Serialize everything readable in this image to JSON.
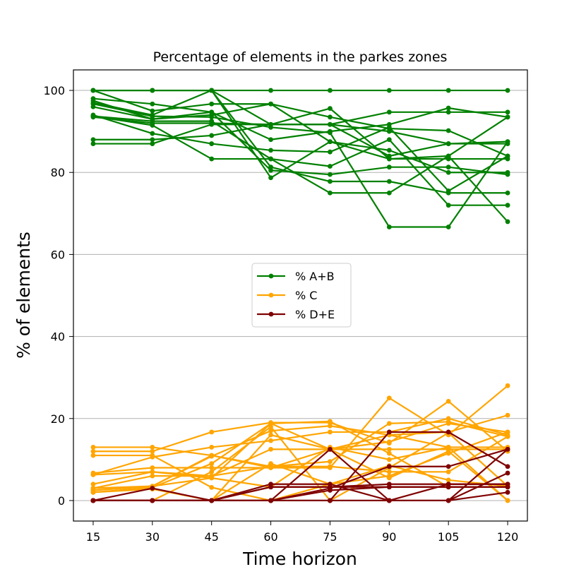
{
  "chart_data": {
    "type": "line",
    "title": "Percentage of elements in the parkes zones",
    "xlabel": "Time horizon",
    "ylabel": "% of elements",
    "x": [
      15,
      30,
      45,
      60,
      75,
      90,
      105,
      120
    ],
    "x_tick_labels": [
      "15",
      "30",
      "45",
      "60",
      "75",
      "90",
      "105",
      "120"
    ],
    "y_ticks": [
      0,
      20,
      40,
      60,
      80,
      100
    ],
    "y_tick_labels": [
      "0",
      "20",
      "40",
      "60",
      "80",
      "100"
    ],
    "xlim": [
      10,
      125
    ],
    "ylim": [
      -5,
      105
    ],
    "grid": "y-axis horizontal lines",
    "legend_position": "center",
    "legend": [
      {
        "label": "% A+B",
        "color": "#008000"
      },
      {
        "label": "% C",
        "color": "#FFA500"
      },
      {
        "label": "% D+E",
        "color": "#800000"
      }
    ],
    "groups": [
      {
        "name": "% A+B",
        "color": "#008000",
        "series": [
          [
            100,
            100,
            100,
            100,
            100,
            100,
            100,
            100
          ],
          [
            93.5,
            92.0,
            92.0,
            91.7,
            91.7,
            94.7,
            94.7,
            94.7
          ],
          [
            98.0,
            96.7,
            94.7,
            88.0,
            90.0,
            91.7,
            95.7,
            93.5
          ],
          [
            97.0,
            94.0,
            100,
            91.7,
            91.7,
            90.0,
            87.0,
            87.0
          ],
          [
            96.0,
            93.0,
            94.0,
            96.7,
            93.5,
            90.7,
            90.2,
            84.0
          ],
          [
            88.0,
            88.0,
            89.0,
            91.7,
            95.6,
            83.3,
            83.3,
            83.3
          ],
          [
            87.0,
            87.0,
            91.7,
            91.7,
            91.7,
            84.0,
            87.0,
            87.5
          ],
          [
            94.0,
            89.5,
            87.0,
            85.4,
            85.0,
            91.0,
            75.5,
            84.0
          ],
          [
            97.5,
            93.0,
            94.7,
            80.5,
            79.5,
            81.3,
            81.3,
            79.5
          ],
          [
            100,
            95.0,
            96.7,
            96.7,
            87.5,
            85.4,
            80.0,
            80.0
          ],
          [
            93.7,
            91.5,
            83.3,
            83.3,
            81.5,
            88.0,
            72.0,
            72.0
          ],
          [
            100,
            100,
            100,
            78.7,
            87.5,
            83.3,
            84.0,
            68.0
          ],
          [
            93.7,
            92.5,
            92.5,
            83.3,
            75.0,
            75.0,
            84.0,
            93.5
          ],
          [
            100,
            100,
            100,
            81.3,
            77.8,
            77.8,
            75.0,
            75.0
          ],
          [
            96.7,
            93.7,
            93.5,
            91.0,
            89.7,
            66.7,
            66.7,
            87.5
          ]
        ]
      },
      {
        "name": "% C",
        "color": "#FFA500",
        "series": [
          [
            13.0,
            13.0,
            11.0,
            8.0,
            8.0,
            25.0,
            16.0,
            28.0
          ],
          [
            12.0,
            12.0,
            16.7,
            19.0,
            19.0,
            14.0,
            24.2,
            12.0
          ],
          [
            6.7,
            8.0,
            8.0,
            8.0,
            12.5,
            16.0,
            16.7,
            20.8
          ],
          [
            6.3,
            10.6,
            13.0,
            14.6,
            16.7,
            16.7,
            20.0,
            16.0
          ],
          [
            4.0,
            7.0,
            6.0,
            12.5,
            12.5,
            14.3,
            18.8,
            16.7
          ],
          [
            3.0,
            6.0,
            6.0,
            8.3,
            9.5,
            18.8,
            19.2,
            15.6
          ],
          [
            2.5,
            3.5,
            10.8,
            17.0,
            18.2,
            16.0,
            13.0,
            13.0
          ],
          [
            2.0,
            3.2,
            9.0,
            18.8,
            12.5,
            12.5,
            12.5,
            12.5
          ],
          [
            0,
            0,
            7.0,
            18.0,
            0,
            8.0,
            16.5,
            3.5
          ],
          [
            11.0,
            11.0,
            3.2,
            0,
            4.0,
            6.0,
            11.5,
            16.7
          ],
          [
            6.3,
            7.0,
            5.5,
            3.3,
            13.0,
            10.0,
            13.0,
            0
          ],
          [
            2.5,
            3.5,
            5.5,
            18.8,
            19.3,
            11.5,
            3.3,
            3.3
          ],
          [
            2.0,
            2.8,
            0,
            9.0,
            4.0,
            8.5,
            5.0,
            3.5
          ],
          [
            0,
            0,
            0,
            16.0,
            12.5,
            5.5,
            12.0,
            0
          ],
          [
            3.0,
            3.5,
            11.0,
            8.3,
            8.3,
            7.0,
            7.0,
            15.6
          ]
        ]
      },
      {
        "name": "% D+E",
        "color": "#800000",
        "series": [
          [
            0,
            0,
            0,
            0,
            12.5,
            0,
            0,
            12.5
          ],
          [
            0,
            0,
            0,
            0,
            0,
            16.7,
            16.7,
            8.3
          ],
          [
            0,
            0,
            0,
            4.0,
            4.0,
            0,
            4.0,
            4.0
          ],
          [
            0,
            3.0,
            0,
            0,
            3.0,
            8.3,
            8.3,
            12.5
          ],
          [
            0,
            0,
            0,
            3.3,
            3.3,
            4.0,
            4.0,
            4.0
          ],
          [
            0,
            0,
            0,
            0,
            2.5,
            3.3,
            3.3,
            3.3
          ],
          [
            0,
            0,
            0,
            0,
            0,
            0,
            0,
            6.7
          ],
          [
            0,
            0,
            0,
            0,
            0,
            0,
            0,
            2.0
          ],
          [
            0,
            0,
            0,
            3.3,
            3.3,
            3.3,
            3.3,
            3.3
          ]
        ]
      }
    ]
  }
}
